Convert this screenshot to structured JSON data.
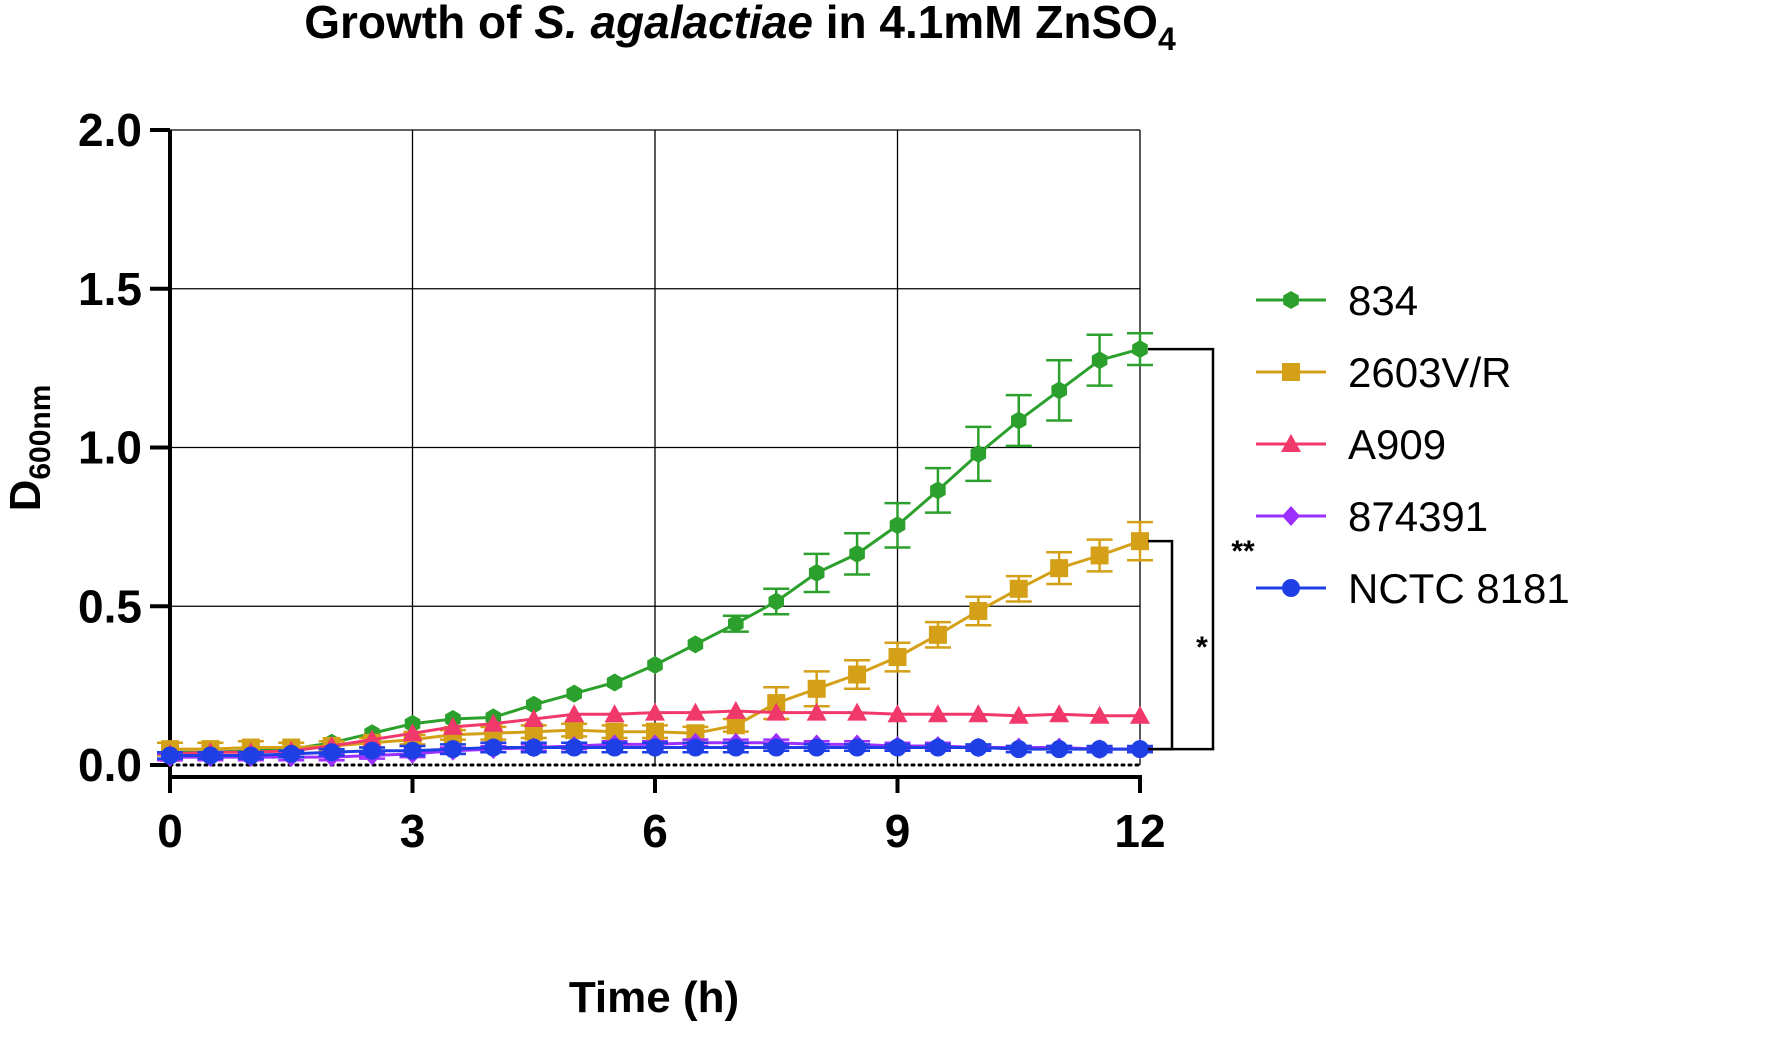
{
  "chart_data": {
    "type": "line",
    "title": {
      "prefix": "Growth of ",
      "italic": "S. agalactiae",
      "middle": " in 4.1mM ZnSO",
      "subscript": "4"
    },
    "xlabel": "Time (h)",
    "ylabel": {
      "main": "D",
      "subscript": "600nm"
    },
    "xlim": [
      0,
      12
    ],
    "ylim": [
      0,
      2.0
    ],
    "xticks": [
      0,
      3,
      6,
      9,
      12
    ],
    "yticks": [
      "0.0",
      "0.5",
      "1.0",
      "1.5",
      "2.0"
    ],
    "grid": true,
    "legend_position": "right",
    "x": [
      0,
      0.5,
      1,
      1.5,
      2,
      2.5,
      3,
      3.5,
      4,
      4.5,
      5,
      5.5,
      6,
      6.5,
      7,
      7.5,
      8,
      8.5,
      9,
      9.5,
      10,
      10.5,
      11,
      11.5,
      12
    ],
    "series": [
      {
        "name": "834",
        "color": "#2ca02c",
        "marker": "hexagon",
        "values": [
          0.04,
          0.04,
          0.045,
          0.05,
          0.07,
          0.1,
          0.13,
          0.145,
          0.15,
          0.19,
          0.225,
          0.26,
          0.315,
          0.38,
          0.445,
          0.515,
          0.605,
          0.665,
          0.755,
          0.865,
          0.98,
          1.085,
          1.18,
          1.275,
          1.31
        ],
        "errors": [
          0,
          0,
          0,
          0,
          0,
          0,
          0,
          0,
          0,
          0,
          0,
          0,
          0,
          0,
          0.025,
          0.04,
          0.06,
          0.065,
          0.07,
          0.07,
          0.085,
          0.08,
          0.095,
          0.08,
          0.05
        ]
      },
      {
        "name": "2603V/R",
        "color": "#d4a017",
        "marker": "square",
        "values": [
          0.05,
          0.05,
          0.055,
          0.055,
          0.06,
          0.07,
          0.08,
          0.095,
          0.1,
          0.105,
          0.11,
          0.105,
          0.105,
          0.1,
          0.125,
          0.195,
          0.24,
          0.285,
          0.34,
          0.41,
          0.485,
          0.555,
          0.62,
          0.66,
          0.705
        ],
        "errors": [
          0.02,
          0.02,
          0.02,
          0.015,
          0.015,
          0.015,
          0.015,
          0.015,
          0.02,
          0.02,
          0.02,
          0.02,
          0.02,
          0.02,
          0.02,
          0.05,
          0.055,
          0.045,
          0.045,
          0.04,
          0.045,
          0.04,
          0.05,
          0.05,
          0.06
        ]
      },
      {
        "name": "A909",
        "color": "#f0386b",
        "marker": "triangle",
        "values": [
          0.035,
          0.04,
          0.04,
          0.045,
          0.06,
          0.08,
          0.1,
          0.12,
          0.13,
          0.145,
          0.16,
          0.16,
          0.165,
          0.165,
          0.17,
          0.165,
          0.165,
          0.165,
          0.16,
          0.16,
          0.16,
          0.155,
          0.16,
          0.155,
          0.155
        ],
        "errors": [
          0,
          0,
          0,
          0,
          0,
          0,
          0,
          0,
          0,
          0,
          0,
          0,
          0,
          0,
          0,
          0,
          0,
          0,
          0,
          0,
          0,
          0,
          0,
          0,
          0
        ]
      },
      {
        "name": "874391",
        "color": "#9b30ff",
        "marker": "diamond",
        "values": [
          0.025,
          0.025,
          0.025,
          0.025,
          0.025,
          0.03,
          0.035,
          0.045,
          0.05,
          0.055,
          0.06,
          0.065,
          0.065,
          0.07,
          0.07,
          0.07,
          0.065,
          0.065,
          0.06,
          0.06,
          0.055,
          0.055,
          0.055,
          0.05,
          0.05
        ],
        "errors": [
          0.01,
          0.01,
          0.01,
          0.01,
          0.01,
          0.01,
          0.01,
          0.01,
          0.01,
          0.01,
          0.01,
          0.01,
          0.01,
          0.01,
          0.01,
          0.01,
          0.01,
          0.01,
          0.01,
          0.01,
          0.005,
          0.005,
          0.005,
          0.005,
          0.005
        ]
      },
      {
        "name": "NCTC 8181",
        "color": "#1f3fe6",
        "marker": "circle",
        "values": [
          0.03,
          0.03,
          0.03,
          0.035,
          0.04,
          0.045,
          0.045,
          0.05,
          0.055,
          0.055,
          0.055,
          0.055,
          0.055,
          0.055,
          0.055,
          0.055,
          0.055,
          0.055,
          0.055,
          0.055,
          0.055,
          0.05,
          0.05,
          0.05,
          0.05
        ],
        "errors": [
          0.01,
          0.01,
          0.01,
          0.01,
          0.01,
          0.01,
          0.015,
          0.015,
          0.015,
          0.015,
          0.015,
          0.015,
          0.015,
          0.015,
          0.015,
          0.01,
          0.01,
          0.01,
          0.01,
          0.01,
          0.01,
          0.01,
          0.01,
          0.01,
          0.01
        ]
      }
    ],
    "significance": [
      {
        "label": "**",
        "from_series": "834",
        "to_series": "NCTC 8181",
        "at_x": 12
      },
      {
        "label": "*",
        "from_series": "2603V/R",
        "to_series": "NCTC 8181",
        "at_x": 12
      }
    ]
  }
}
